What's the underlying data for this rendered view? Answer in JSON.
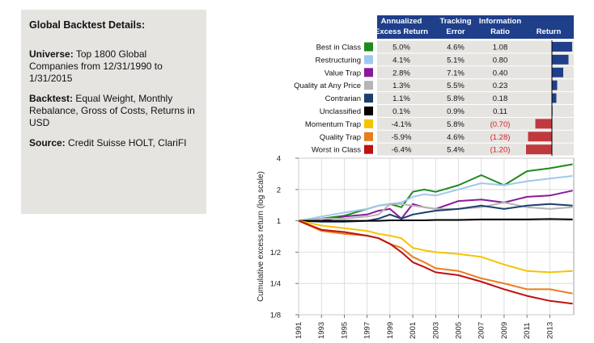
{
  "details": {
    "title": "Global Backtest Details:",
    "universe_label": "Universe:",
    "universe_text": " Top 1800 Global Companies from 12/31/1990 to 1/31/2015",
    "backtest_label": "Backtest:",
    "backtest_text": " Equal Weight, Monthly Rebalance, Gross of Costs, Returns in USD",
    "source_label": "Source:",
    "source_text": " Credit Suisse HOLT, ClariFI"
  },
  "colors": {
    "header_bg": "#1f3f8b",
    "row_bg": "#e6e4e0",
    "pos_bar": "#1f3f8b",
    "neg_bar": "#c0393f",
    "neg_text": "#d0202a"
  },
  "table": {
    "headers": {
      "excess_l1": "Annualized",
      "excess_l2": "Excess Return",
      "tracking_l1": "Tracking",
      "tracking_l2": "Error",
      "info_l1": "Information",
      "info_l2": "Ratio",
      "return": "Return"
    },
    "rows": [
      {
        "name": "Best in Class",
        "color": "#1e8a1e",
        "excess": "5.0%",
        "tracking": "4.6%",
        "info": "1.08",
        "value": 5.0
      },
      {
        "name": "Restructuring",
        "color": "#9fc8ef",
        "excess": "4.1%",
        "tracking": "5.1%",
        "info": "0.80",
        "value": 4.1
      },
      {
        "name": "Value Trap",
        "color": "#8b1a9a",
        "excess": "2.8%",
        "tracking": "7.1%",
        "info": "0.40",
        "value": 2.8
      },
      {
        "name": "Quality at Any Price",
        "color": "#b5b5b5",
        "excess": "1.3%",
        "tracking": "5.5%",
        "info": "0.23",
        "value": 1.3
      },
      {
        "name": "Contrarian",
        "color": "#1c3f6e",
        "excess": "1.1%",
        "tracking": "5.8%",
        "info": "0.18",
        "value": 1.1
      },
      {
        "name": "Unclassified",
        "color": "#000000",
        "excess": "0.1%",
        "tracking": "0.9%",
        "info": "0.11",
        "value": 0.1
      },
      {
        "name": "Momentum Trap",
        "color": "#f5c400",
        "excess": "-4.1%",
        "tracking": "5.8%",
        "info": "(0.70)",
        "value": -4.1
      },
      {
        "name": "Quality Trap",
        "color": "#e87d1e",
        "excess": "-5.9%",
        "tracking": "4.6%",
        "info": "(1.28)",
        "value": -5.9
      },
      {
        "name": "Worst in Class",
        "color": "#c01010",
        "excess": "-6.4%",
        "tracking": "5.4%",
        "info": "(1.20)",
        "value": -6.4
      }
    ]
  },
  "chart_data": {
    "type": "line",
    "ylabel": "Cumulative excess return (log scale)",
    "y_scale": "log2",
    "ylim": [
      0.125,
      4
    ],
    "y_ticks": [
      {
        "value": 4,
        "label": "4"
      },
      {
        "value": 2,
        "label": "2"
      },
      {
        "value": 1,
        "label": "1"
      },
      {
        "value": 0.5,
        "label": "1/2"
      },
      {
        "value": 0.25,
        "label": "1/4"
      },
      {
        "value": 0.125,
        "label": "1/8"
      }
    ],
    "xlim": [
      1991,
      2015.1
    ],
    "x_ticks": [
      "1991",
      "1993",
      "1995",
      "1997",
      "1999",
      "2001",
      "2003",
      "2005",
      "2007",
      "2009",
      "2011",
      "2013"
    ],
    "grid": true,
    "x": [
      1991,
      1993,
      1995,
      1997,
      1998,
      1999,
      2000,
      2001,
      2002,
      2003,
      2005,
      2007,
      2009,
      2011,
      2013,
      2015
    ],
    "series": [
      {
        "name": "Best in Class",
        "color": "#1e8a1e",
        "values": [
          1.0,
          1.05,
          1.12,
          1.3,
          1.4,
          1.45,
          1.35,
          1.9,
          2.0,
          1.9,
          2.2,
          2.75,
          2.2,
          3.0,
          3.2,
          3.5
        ]
      },
      {
        "name": "Restructuring",
        "color": "#9fc8ef",
        "values": [
          1.0,
          1.1,
          1.2,
          1.3,
          1.4,
          1.45,
          1.5,
          1.7,
          1.8,
          1.75,
          2.0,
          2.3,
          2.2,
          2.4,
          2.55,
          2.7
        ]
      },
      {
        "name": "Value Trap",
        "color": "#8b1a9a",
        "values": [
          1.0,
          1.0,
          1.1,
          1.15,
          1.25,
          1.3,
          1.05,
          1.45,
          1.35,
          1.3,
          1.55,
          1.6,
          1.5,
          1.7,
          1.75,
          1.95
        ]
      },
      {
        "name": "Quality at Any Price",
        "color": "#b5b5b5",
        "values": [
          1.0,
          1.05,
          1.05,
          1.1,
          1.15,
          1.45,
          1.45,
          1.4,
          1.35,
          1.3,
          1.3,
          1.35,
          1.5,
          1.35,
          1.3,
          1.35
        ]
      },
      {
        "name": "Contrarian",
        "color": "#1c3f6e",
        "values": [
          1.0,
          0.98,
          0.98,
          1.0,
          1.05,
          1.15,
          1.05,
          1.15,
          1.2,
          1.25,
          1.3,
          1.4,
          1.3,
          1.4,
          1.45,
          1.4
        ]
      },
      {
        "name": "Unclassified",
        "color": "#000000",
        "values": [
          1.0,
          1.0,
          1.0,
          1.0,
          1.0,
          1.01,
          1.01,
          1.01,
          1.01,
          1.02,
          1.02,
          1.03,
          1.03,
          1.03,
          1.04,
          1.03
        ]
      },
      {
        "name": "Momentum Trap",
        "color": "#f5c400",
        "values": [
          1.0,
          0.9,
          0.85,
          0.8,
          0.75,
          0.72,
          0.68,
          0.55,
          0.52,
          0.5,
          0.48,
          0.45,
          0.38,
          0.33,
          0.32,
          0.33
        ]
      },
      {
        "name": "Quality Trap",
        "color": "#e87d1e",
        "values": [
          1.0,
          0.8,
          0.75,
          0.72,
          0.68,
          0.6,
          0.55,
          0.45,
          0.4,
          0.35,
          0.33,
          0.28,
          0.25,
          0.22,
          0.22,
          0.2
        ]
      },
      {
        "name": "Worst in Class",
        "color": "#c01010",
        "values": [
          1.0,
          0.82,
          0.78,
          0.72,
          0.68,
          0.6,
          0.5,
          0.4,
          0.36,
          0.32,
          0.3,
          0.26,
          0.22,
          0.19,
          0.17,
          0.16
        ]
      }
    ]
  }
}
